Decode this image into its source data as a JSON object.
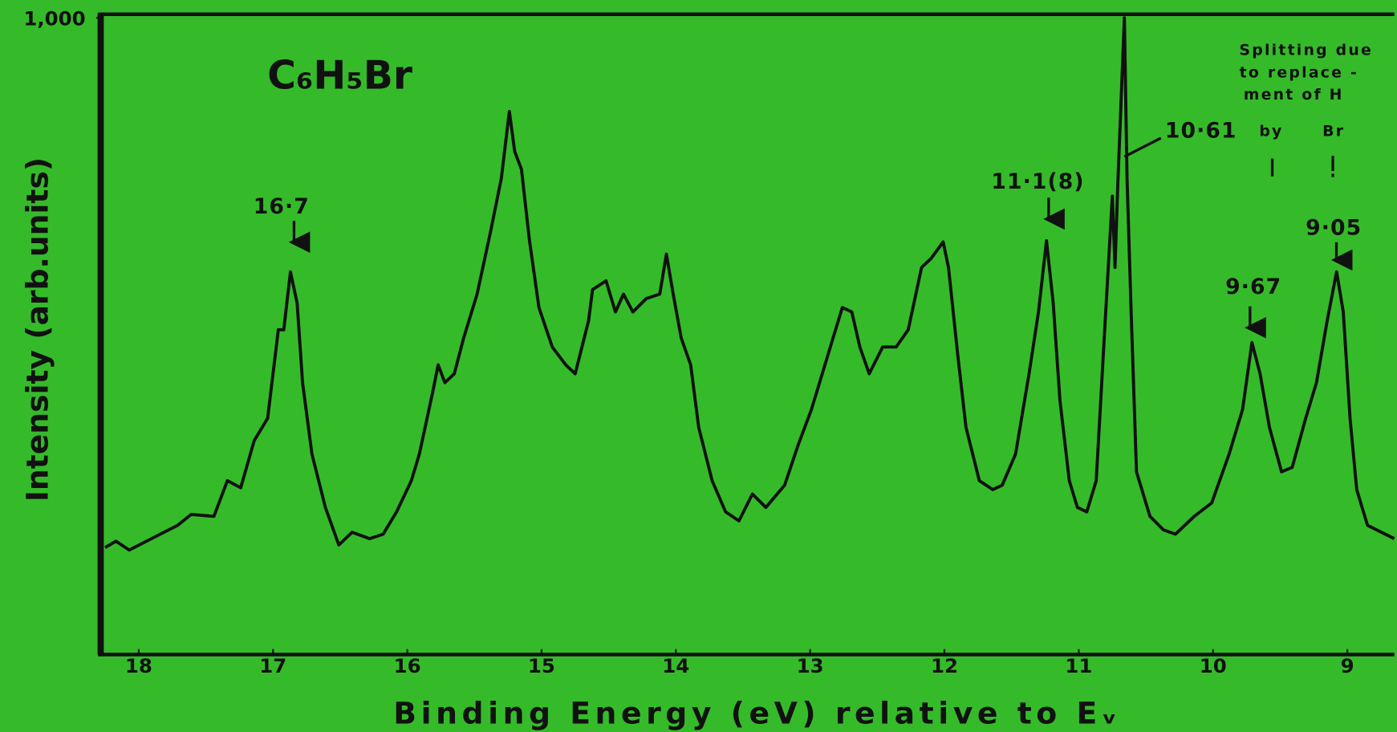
{
  "chart_data": {
    "type": "line",
    "title": "C₆H₅Br",
    "x_label": "Binding Energy (eV) relative to Eᵥ",
    "y_label": "Intensity (arb.units)",
    "color": "#111111",
    "background": "#35bb2a",
    "xlim": [
      18.25,
      8.65
    ],
    "xticks": [
      18,
      17,
      16,
      15,
      14,
      13,
      12,
      11,
      10,
      9
    ],
    "ylim": [
      0,
      1000
    ],
    "yticks": [
      {
        "value": 1000,
        "label": "1,000"
      }
    ],
    "grid": false,
    "annotations": [
      "16·7",
      "11·1(8)",
      "10·61",
      "9·67",
      "9·05",
      "Splitting due",
      "to replace -",
      "ment of H",
      "by",
      "Br"
    ],
    "x": [
      18.25,
      18.17,
      18.07,
      17.97,
      17.84,
      17.71,
      17.61,
      17.44,
      17.34,
      17.24,
      17.14,
      17.04,
      16.96,
      16.92,
      16.87,
      16.82,
      16.78,
      16.71,
      16.61,
      16.51,
      16.41,
      16.28,
      16.18,
      16.08,
      15.97,
      15.91,
      15.81,
      15.77,
      15.72,
      15.65,
      15.58,
      15.48,
      15.38,
      15.3,
      15.24,
      15.2,
      15.15,
      15.09,
      15.02,
      14.92,
      14.82,
      14.75,
      14.65,
      14.62,
      14.52,
      14.45,
      14.39,
      14.32,
      14.22,
      14.12,
      14.07,
      14.02,
      13.96,
      13.89,
      13.83,
      13.73,
      13.63,
      13.53,
      13.43,
      13.33,
      13.19,
      13.09,
      12.99,
      12.93,
      12.83,
      12.76,
      12.69,
      12.63,
      12.56,
      12.46,
      12.36,
      12.27,
      12.17,
      12.1,
      12.01,
      11.97,
      11.9,
      11.84,
      11.74,
      11.64,
      11.57,
      11.47,
      11.37,
      11.3,
      11.24,
      11.19,
      11.14,
      11.07,
      11.01,
      10.94,
      10.87,
      10.81,
      10.75,
      10.73,
      10.71,
      10.66,
      10.64,
      10.61,
      10.57,
      10.47,
      10.37,
      10.28,
      10.14,
      10.01,
      9.88,
      9.78,
      9.71,
      9.65,
      9.58,
      9.49,
      9.41,
      9.31,
      9.23,
      9.15,
      9.08,
      9.03,
      8.98,
      8.93,
      8.85,
      8.65
    ],
    "values": [
      168,
      178,
      164,
      175,
      189,
      203,
      220,
      217,
      273,
      262,
      336,
      371,
      510,
      510,
      601,
      552,
      427,
      315,
      231,
      172,
      192,
      182,
      189,
      224,
      273,
      315,
      413,
      455,
      427,
      441,
      497,
      566,
      664,
      748,
      853,
      790,
      762,
      650,
      545,
      483,
      455,
      441,
      524,
      573,
      587,
      538,
      566,
      538,
      559,
      566,
      629,
      566,
      497,
      455,
      357,
      273,
      224,
      210,
      252,
      231,
      266,
      329,
      385,
      427,
      497,
      545,
      538,
      483,
      441,
      483,
      483,
      510,
      608,
      622,
      648,
      608,
      469,
      357,
      273,
      259,
      266,
      315,
      441,
      538,
      650,
      552,
      399,
      273,
      231,
      224,
      273,
      497,
      720,
      608,
      734,
      1000,
      748,
      538,
      287,
      217,
      196,
      189,
      217,
      238,
      315,
      385,
      490,
      441,
      357,
      287,
      294,
      371,
      427,
      524,
      601,
      538,
      371,
      259,
      203,
      182
    ]
  }
}
